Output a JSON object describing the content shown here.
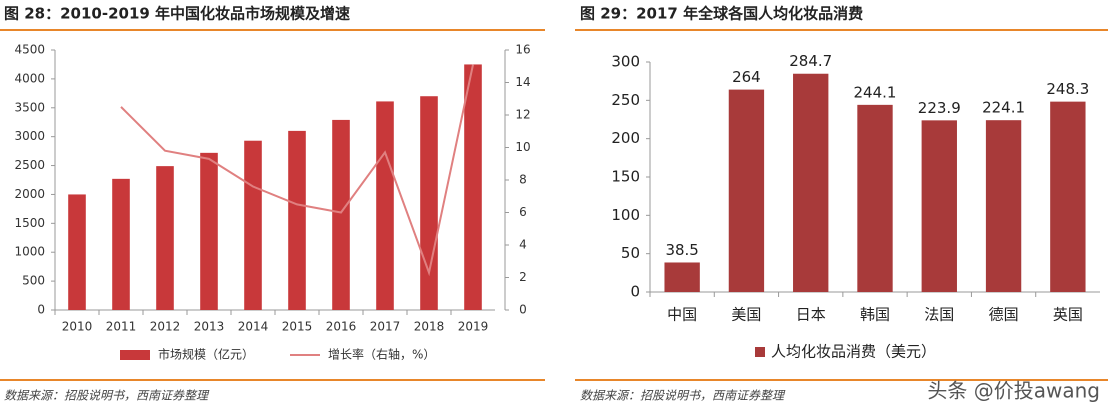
{
  "chart_data": [
    {
      "type": "bar",
      "title": "图 28：2010-2019 年中国化妆品市场规模及增速",
      "categories": [
        "2010",
        "2011",
        "2012",
        "2013",
        "2014",
        "2015",
        "2016",
        "2017",
        "2018",
        "2019"
      ],
      "series": [
        {
          "name": "市场规模（亿元）",
          "type": "bar",
          "color": "#c8383a",
          "values": [
            2000,
            2270,
            2490,
            2720,
            2930,
            3100,
            3290,
            3610,
            3700,
            4250
          ]
        },
        {
          "name": "增长率（右轴，%）",
          "type": "line",
          "axis": "y2",
          "color": "#e08080",
          "values": [
            null,
            12.5,
            9.8,
            9.3,
            7.6,
            6.5,
            6.0,
            9.7,
            2.3,
            15.1
          ]
        }
      ],
      "ylim": [
        0,
        4500
      ],
      "yticks": [
        0,
        500,
        1000,
        1500,
        2000,
        2500,
        3000,
        3500,
        4000,
        4500
      ],
      "y2lim": [
        0,
        16
      ],
      "y2ticks": [
        0,
        2,
        4,
        6,
        8,
        10,
        12,
        14,
        16
      ],
      "source": "数据来源：招股说明书，西南证券整理"
    },
    {
      "type": "bar",
      "title": "图 29：2017 年全球各国人均化妆品消费",
      "categories": [
        "中国",
        "美国",
        "日本",
        "韩国",
        "法国",
        "德国",
        "英国"
      ],
      "series": [
        {
          "name": "人均化妆品消费（美元）",
          "type": "bar",
          "color": "#a83a3a",
          "values": [
            38.5,
            264,
            284.7,
            244.1,
            223.9,
            224.1,
            248.3
          ]
        }
      ],
      "data_labels": true,
      "ylim": [
        0,
        300
      ],
      "yticks": [
        0,
        50,
        100,
        150,
        200,
        250,
        300
      ],
      "source": "数据来源：招股说明书，西南证券整理",
      "watermark": "头条 @价投awang"
    }
  ]
}
